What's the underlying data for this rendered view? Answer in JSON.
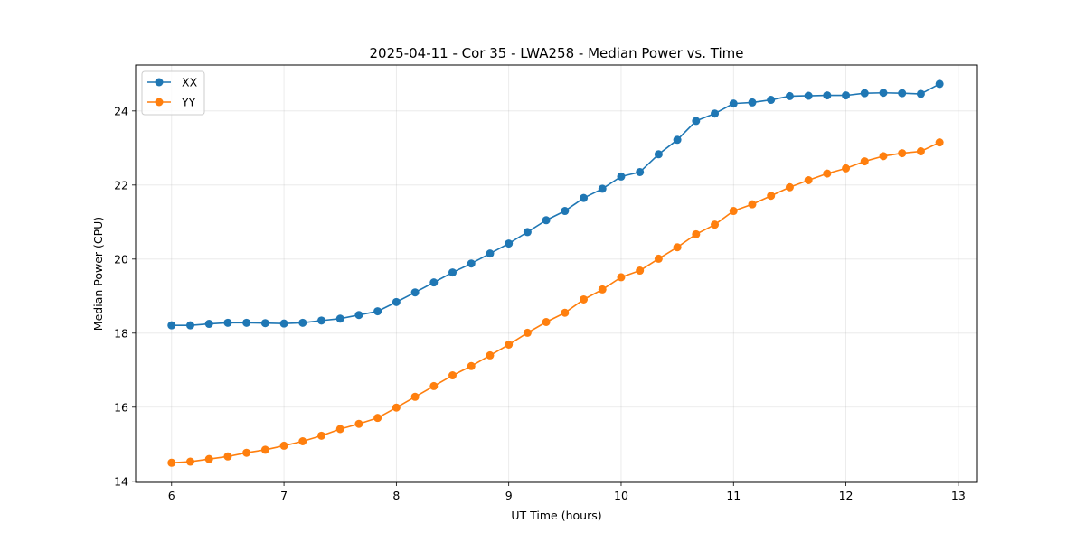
{
  "chart_data": {
    "type": "line",
    "title": "2025-04-11 - Cor 35 - LWA258 - Median Power vs. Time",
    "xlabel": "UT Time (hours)",
    "ylabel": "Median Power (CPU)",
    "xlim": [
      5.68,
      13.17
    ],
    "ylim": [
      13.97,
      25.24
    ],
    "xticks": [
      6,
      7,
      8,
      9,
      10,
      11,
      12,
      13
    ],
    "yticks": [
      14,
      16,
      18,
      20,
      22,
      24
    ],
    "grid": true,
    "legend_position": "upper-left",
    "x": [
      6.0,
      6.1667,
      6.3333,
      6.5,
      6.6667,
      6.8333,
      7.0,
      7.1667,
      7.3333,
      7.5,
      7.6667,
      7.8333,
      8.0,
      8.1667,
      8.3333,
      8.5,
      8.6667,
      8.8333,
      9.0,
      9.1667,
      9.3333,
      9.5,
      9.6667,
      9.8333,
      10.0,
      10.1667,
      10.3333,
      10.5,
      10.6667,
      10.8333,
      11.0,
      11.1667,
      11.3333,
      11.5,
      11.6667,
      11.8333,
      12.0,
      12.1667,
      12.3333,
      12.5,
      12.6667,
      12.8333
    ],
    "series": [
      {
        "name": "XX",
        "color": "#1f77b4",
        "values": [
          18.21,
          18.21,
          18.25,
          18.28,
          18.28,
          18.27,
          18.26,
          18.28,
          18.34,
          18.39,
          18.49,
          18.59,
          18.84,
          19.1,
          19.37,
          19.64,
          19.88,
          20.15,
          20.42,
          20.73,
          21.05,
          21.3,
          21.65,
          21.9,
          22.23,
          22.35,
          22.83,
          23.22,
          23.73,
          23.93,
          24.2,
          24.23,
          24.3,
          24.4,
          24.41,
          24.42,
          24.42,
          24.48,
          24.49,
          24.48,
          24.46,
          24.73
        ]
      },
      {
        "name": "YY",
        "color": "#ff7f0e",
        "values": [
          14.5,
          14.53,
          14.6,
          14.67,
          14.77,
          14.85,
          14.96,
          15.08,
          15.23,
          15.41,
          15.55,
          15.71,
          15.99,
          16.28,
          16.57,
          16.86,
          17.11,
          17.4,
          17.69,
          18.01,
          18.3,
          18.55,
          18.91,
          19.18,
          19.51,
          19.69,
          20.01,
          20.32,
          20.67,
          20.93,
          21.3,
          21.48,
          21.71,
          21.94,
          22.13,
          22.31,
          22.45,
          22.64,
          22.78,
          22.86,
          22.91,
          23.15
        ]
      }
    ]
  }
}
